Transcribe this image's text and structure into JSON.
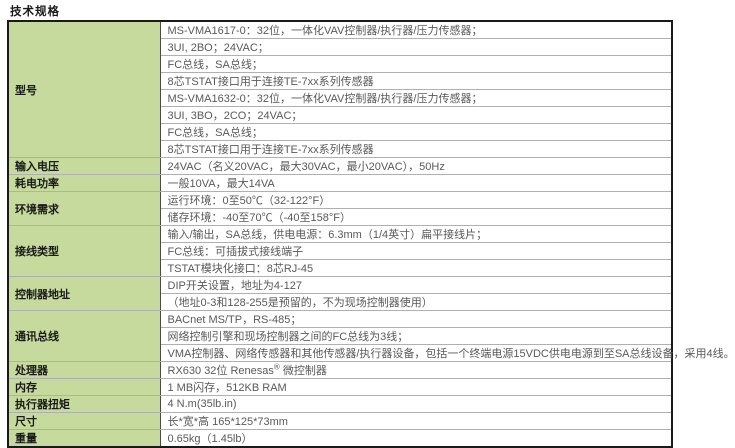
{
  "page_title": "技术规格",
  "table": {
    "sections": [
      {
        "label": "型号",
        "values": [
          "MS-VMA1617-0：32位，一体化VAV控制器/执行器/压力传感器；",
          "3UI, 2BO；24VAC；",
          "FC总线，SA总线；",
          "8芯TSTAT接口用于连接TE-7xx系列传感器",
          "MS-VMA1632-0：32位，一体化VAV控制器/执行器/压力传感器；",
          "3UI, 3BO，2CO；24VAC；",
          "FC总线，SA总线；",
          "8芯TSTAT接口用于连接TE-7xx系列传感器"
        ]
      },
      {
        "label": "输入电压",
        "values": [
          "24VAC（名义20VAC，最大30VAC，最小20VAC），50Hz"
        ]
      },
      {
        "label": "耗电功率",
        "values": [
          "一般10VA，最大14VA"
        ]
      },
      {
        "label": "环境需求",
        "values": [
          "运行环境：0至50℃（32-122°F）",
          "储存环境：-40至70℃（-40至158°F）"
        ]
      },
      {
        "label": "接线类型",
        "values": [
          "输入/输出，SA总线，供电电源：6.3mm（1/4英寸）扁平接线片；",
          "FC总线：可插拔式接线端子",
          "TSTAT模块化接口：8芯RJ-45"
        ]
      },
      {
        "label": "控制器地址",
        "values": [
          "DIP开关设置，地址为4-127",
          "（地址0-3和128-255是预留的，不为现场控制器使用）"
        ]
      },
      {
        "label": "通讯总线",
        "values": [
          "BACnet MS/TP，RS-485；",
          "网络控制引擎和现场控制器之间的FC总线为3线；",
          "VMA控制器、网络传感器和其他传感器/执行器设备，包括一个终端电源15VDC供电电源到至SA总线设备，采用4线。"
        ]
      },
      {
        "label": "处理器",
        "values": [
          "RX630 32位 Renesas® 微控制器"
        ]
      },
      {
        "label": "内存",
        "values": [
          "1 MB闪存，512KB RAM"
        ]
      },
      {
        "label": "执行器扭矩",
        "values": [
          "4 N.m(35lb.in)"
        ]
      },
      {
        "label": "尺寸",
        "values": [
          "长*宽*高 165*125*73mm"
        ]
      },
      {
        "label": "重量",
        "values": [
          "0.65kg（1.45lb）"
        ]
      }
    ]
  },
  "colors": {
    "label_bg": "#c5da9c",
    "outer_border": "#1a1a1a",
    "inner_border": "#b0b0b0",
    "column_divider": "#4a4a4a",
    "label_text": "#1a1a1a",
    "value_text": "#595959"
  }
}
